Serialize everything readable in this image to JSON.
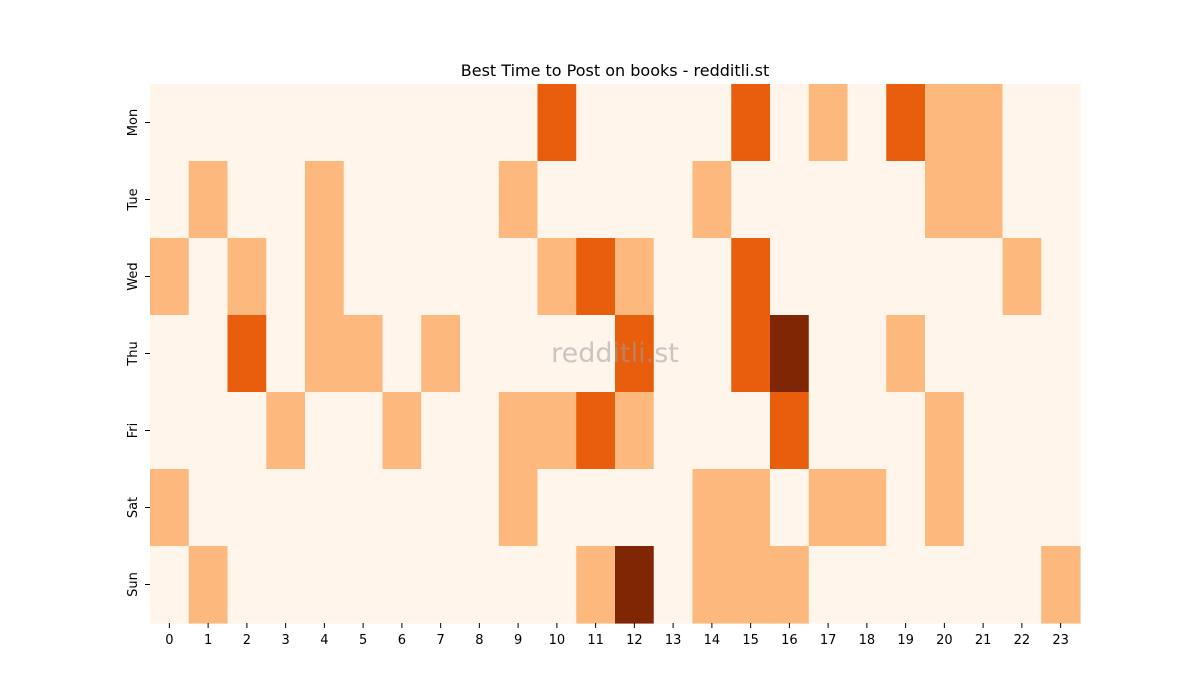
{
  "chart_data": {
    "type": "heatmap",
    "title": "Best Time to Post on books - redditli.st",
    "watermark": "redditli.st",
    "x_categories": [
      "0",
      "1",
      "2",
      "3",
      "4",
      "5",
      "6",
      "7",
      "8",
      "9",
      "10",
      "11",
      "12",
      "13",
      "14",
      "15",
      "16",
      "17",
      "18",
      "19",
      "20",
      "21",
      "22",
      "23"
    ],
    "y_categories": [
      "Mon",
      "Tue",
      "Wed",
      "Thu",
      "Fri",
      "Sat",
      "Sun"
    ],
    "values": [
      [
        0,
        0,
        0,
        0,
        0,
        0,
        0,
        0,
        0,
        0,
        2,
        0,
        0,
        0,
        0,
        2,
        0,
        1,
        0,
        2,
        1,
        1,
        0,
        0
      ],
      [
        0,
        1,
        0,
        0,
        1,
        0,
        0,
        0,
        0,
        1,
        0,
        0,
        0,
        0,
        1,
        0,
        0,
        0,
        0,
        0,
        1,
        1,
        0,
        0
      ],
      [
        1,
        0,
        1,
        0,
        1,
        0,
        0,
        0,
        0,
        0,
        1,
        2,
        1,
        0,
        0,
        2,
        0,
        0,
        0,
        0,
        0,
        0,
        1,
        0
      ],
      [
        0,
        0,
        2,
        0,
        1,
        1,
        0,
        1,
        0,
        0,
        0,
        0,
        2,
        0,
        0,
        2,
        3,
        0,
        0,
        1,
        0,
        0,
        0,
        0
      ],
      [
        0,
        0,
        0,
        1,
        0,
        0,
        1,
        0,
        0,
        1,
        1,
        2,
        1,
        0,
        0,
        0,
        2,
        0,
        0,
        0,
        1,
        0,
        0,
        0
      ],
      [
        1,
        0,
        0,
        0,
        0,
        0,
        0,
        0,
        0,
        1,
        0,
        0,
        0,
        0,
        1,
        1,
        0,
        1,
        1,
        0,
        1,
        0,
        0,
        0
      ],
      [
        0,
        1,
        0,
        0,
        0,
        0,
        0,
        0,
        0,
        0,
        0,
        1,
        3,
        0,
        1,
        1,
        1,
        0,
        0,
        0,
        0,
        0,
        0,
        1
      ]
    ],
    "value_range": [
      0,
      3
    ],
    "colormap": [
      "#fff5eb",
      "#fdb97d",
      "#e95e0d",
      "#7f2704"
    ],
    "grid": false,
    "legend": "none",
    "xlabel": "",
    "ylabel": ""
  }
}
